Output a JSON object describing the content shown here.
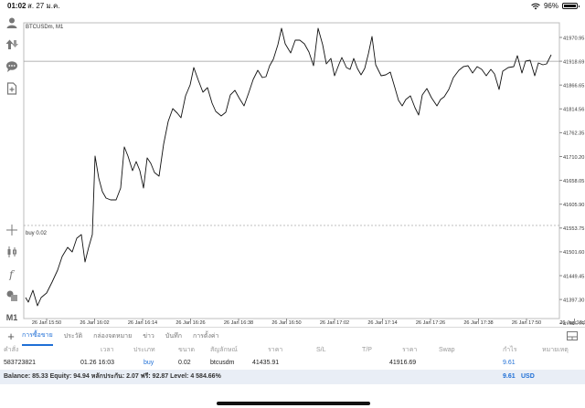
{
  "status_bar": {
    "time": "01:02",
    "date": "ส. 27 ม.ค.",
    "battery": "96%"
  },
  "chart": {
    "symbol": "BTCUSDm, M1",
    "current_price": "41916.69",
    "buy_label": "buy 0.02",
    "price_levels": [
      "41970.95",
      "41918.69",
      "41866.65",
      "41814.56",
      "41762.35",
      "41710.20",
      "41658.05",
      "41605.90",
      "41553.75",
      "41501.60",
      "41449.45",
      "41397.30",
      "41345.15",
      "41293.00",
      "41240.85"
    ],
    "time_labels": [
      "26 Jan 15:50",
      "26 Jan 16:02",
      "26 Jan 16:14",
      "26 Jan 16:26",
      "26 Jan 16:38",
      "26 Jan 16:50",
      "26 Jan 17:02",
      "26 Jan 17:14",
      "26 Jan 17:26",
      "26 Jan 17:38",
      "26 Jan 17:50",
      "26 Jan 18:02"
    ],
    "timeframe": "M1",
    "line_color": "#111111",
    "price_tag_color": "#2f6db5"
  },
  "tabs": [
    {
      "label": "การซื้อขาย",
      "active": true
    },
    {
      "label": "ประวัติ",
      "active": false
    },
    {
      "label": "กล่องจดหมาย",
      "active": false
    },
    {
      "label": "ข่าว",
      "active": false
    },
    {
      "label": "บันทึก",
      "active": false
    },
    {
      "label": "การตั้งค่า",
      "active": false
    }
  ],
  "table": {
    "headers": {
      "ticket": "คำสั่ง",
      "time": "เวลา",
      "type": "ประเภท",
      "volume": "ขนาด",
      "symbol": "สัญลักษณ์",
      "price": "ราคา",
      "sl": "S/L",
      "tp": "T/P",
      "current_price": "ราคา",
      "swap": "Swap",
      "profit": "กำไร",
      "comment": "หมายเหตุ"
    },
    "order": {
      "ticket": "583723821",
      "time": "01.26 16:03",
      "type": "buy",
      "volume": "0.02",
      "symbol": "btcusdm",
      "price": "41435.91",
      "current_price": "41916.69",
      "profit": "9.61"
    },
    "summary": {
      "text": "Balance: 85.33 Equity: 94.94 หลักประกัน: 2.07 ฟรี: 92.87 Level: 4 584.66%",
      "profit": "9.61",
      "currency": "USD"
    }
  }
}
